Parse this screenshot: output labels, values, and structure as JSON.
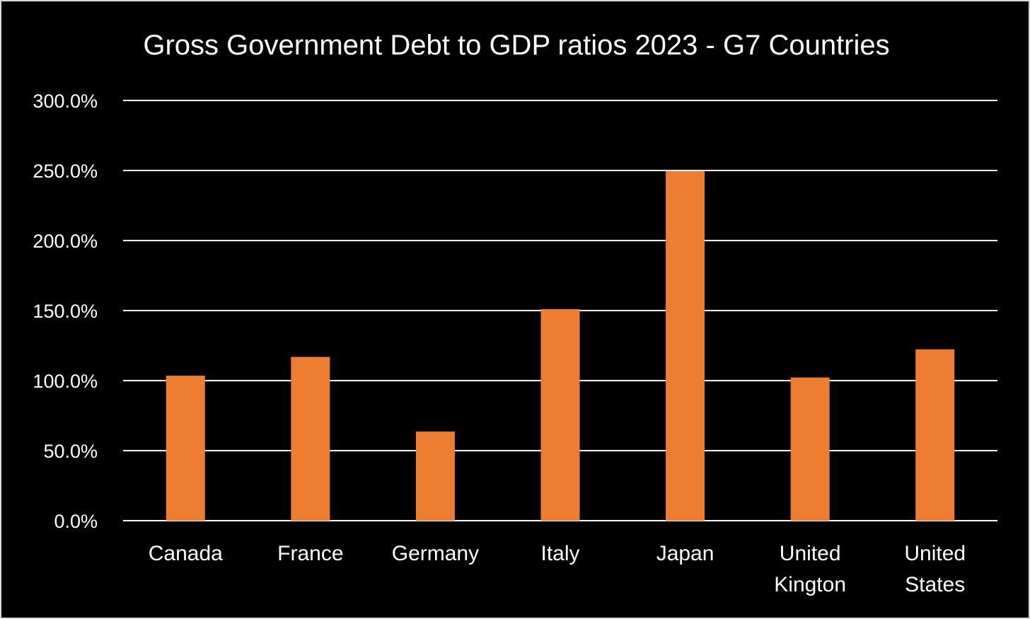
{
  "chart_data": {
    "type": "bar",
    "title": "Gross Government Debt to GDP ratios 2023 - G7 Countries",
    "categories": [
      [
        "Canada"
      ],
      [
        "France"
      ],
      [
        "Germany"
      ],
      [
        "Italy"
      ],
      [
        "Japan"
      ],
      [
        "United",
        "Kington"
      ],
      [
        "United",
        "States"
      ]
    ],
    "values": [
      103.5,
      116.9,
      63.6,
      151.0,
      249.5,
      102.2,
      122.3
    ],
    "yticks": [
      "0.0%",
      "50.0%",
      "100.0%",
      "150.0%",
      "200.0%",
      "250.0%",
      "300.0%"
    ],
    "ylim": [
      0,
      300
    ],
    "xlabel": "",
    "ylabel": "",
    "grid": true,
    "colors": {
      "background": "#000000",
      "bar": "#ED7D31",
      "grid": "#ffffff",
      "text": "#ffffff",
      "border": "#d9d9d9"
    }
  }
}
